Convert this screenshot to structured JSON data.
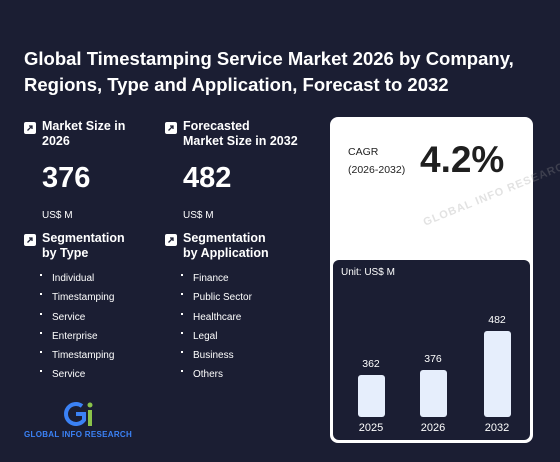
{
  "title": "Global Timestamping Service Market 2026 by Company, Regions, Type and Application, Forecast to 2032",
  "market_size": {
    "label_line1": "Market Size in",
    "label_line2": "2026",
    "value": "376",
    "unit": "US$ M"
  },
  "forecast_size": {
    "label_line1": "Forecasted",
    "label_line2": "Market Size in 2032",
    "value": "482",
    "unit": "US$ M"
  },
  "segmentation_type": {
    "title_line1": "Segmentation",
    "title_line2": "by Type",
    "items": [
      "Individual",
      "Timestamping",
      "Service",
      "Enterprise",
      "Timestamping",
      "Service"
    ]
  },
  "segmentation_application": {
    "title_line1": "Segmentation",
    "title_line2": "by Application",
    "items": [
      "Finance",
      "Public Sector",
      "Healthcare",
      "Legal",
      "Business",
      "Others"
    ]
  },
  "cagr": {
    "label_line1": "CAGR",
    "label_line2": "(2026-2032)",
    "value": "4.2%"
  },
  "watermark_text": "GLOBAL INFO RESEARCH",
  "logo_text": "GLOBAL INFO RESEARCH",
  "colors": {
    "background": "#1b1e33",
    "bar": "#e6eefc",
    "logo_blue": "#3b82f6",
    "logo_green": "#8bc34a"
  },
  "chart_data": {
    "type": "bar",
    "unit_label": "Unit: US$ M",
    "categories": [
      "2025",
      "2026",
      "2032"
    ],
    "values": [
      362,
      376,
      482
    ],
    "ylim": [
      0,
      482
    ],
    "grid": false
  }
}
